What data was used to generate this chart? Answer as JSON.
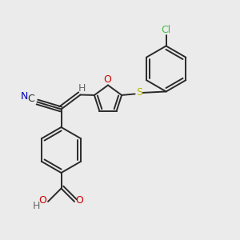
{
  "bg_color": "#ebebeb",
  "bond_color": "#2a2a2a",
  "bond_width": 1.4,
  "figsize": [
    3.0,
    3.0
  ],
  "dpi": 100,
  "atoms": {
    "N": {
      "color": "#0000bb",
      "fontsize": 8.5
    },
    "C_label": {
      "color": "#2a2a2a",
      "fontsize": 8.5
    },
    "O": {
      "color": "#cc0000",
      "fontsize": 8.5
    },
    "S": {
      "color": "#b8b800",
      "fontsize": 8.5
    },
    "Cl": {
      "color": "#44bb44",
      "fontsize": 8.5
    },
    "H": {
      "color": "#666666",
      "fontsize": 8.5
    }
  }
}
